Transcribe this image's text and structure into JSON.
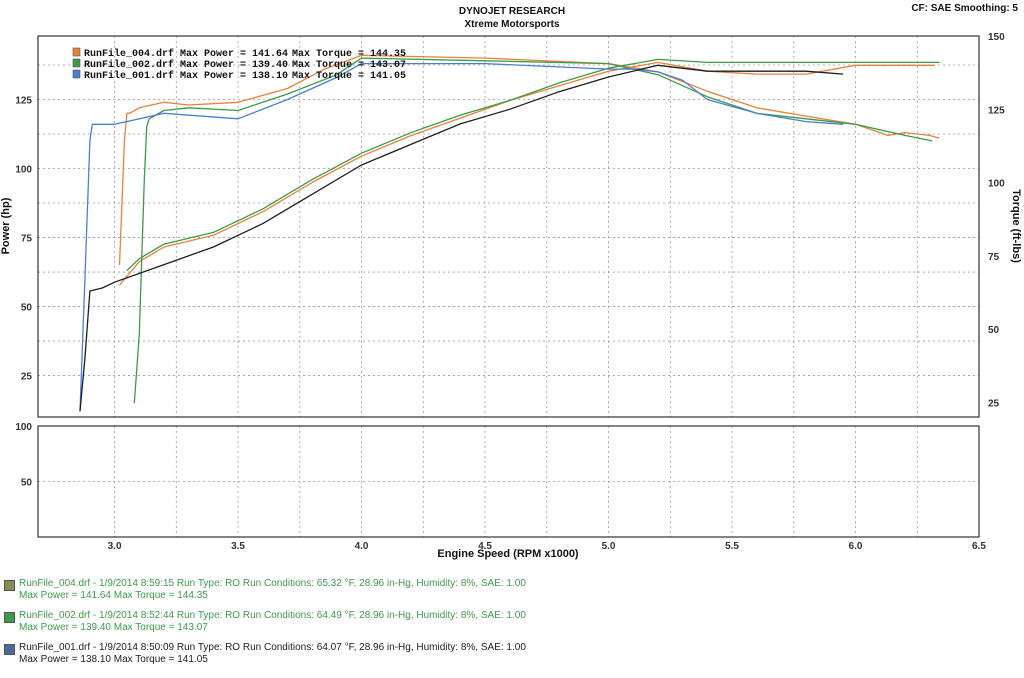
{
  "header": {
    "title_line1": "DYNOJET RESEARCH",
    "title_line2": "Xtreme Motorsports",
    "corner_info": "CF: SAE  Smoothing: 5"
  },
  "colors": {
    "run004": "#e8813a",
    "run002": "#3d9a4a",
    "run001_power": "#4a7fd0",
    "run001_torque": "#1e1e1e",
    "grid": "#9a9a9a",
    "frame": "#333333"
  },
  "chart_data": [
    {
      "type": "line",
      "name": "power-torque",
      "xlabel": "Engine Speed (RPM x1000)",
      "ylabel": "Power (hp)",
      "ylabel_right": "Torque (ft-lbs)",
      "xlim": [
        2.69,
        6.5
      ],
      "ylim": [
        10,
        148
      ],
      "ylim_right": [
        20,
        150
      ],
      "x_ticks": [
        "3.0",
        "3.5",
        "4.0",
        "4.5",
        "5.0",
        "5.5",
        "6.0",
        "6.5"
      ],
      "y_ticks_left": [
        "25",
        "50",
        "75",
        "100",
        "125"
      ],
      "y_ticks_right": [
        "25",
        "50",
        "75",
        "100",
        "125",
        "150"
      ],
      "grid": true,
      "legend_position": "top-left",
      "legend": [
        {
          "run": "RunFile_004.drf",
          "max_power": "Max Power = 141.64",
          "max_torque": "Max Torque = 144.35",
          "color_key": "run004"
        },
        {
          "run": "RunFile_002.drf",
          "max_power": "Max Power = 139.40",
          "max_torque": "Max Torque = 143.07",
          "color_key": "run002"
        },
        {
          "run": "RunFile_001.drf",
          "max_power": "Max Power = 138.10",
          "max_torque": "Max Torque = 141.05",
          "color_key": "run001_power"
        }
      ],
      "series": [
        {
          "run": "RunFile_004.drf",
          "measure": "Power (hp)",
          "axis": "left",
          "color_key": "run004",
          "x": [
            3.02,
            3.04,
            3.05,
            3.06,
            3.1,
            3.2,
            3.3,
            3.5,
            3.7,
            3.85,
            4.0,
            4.5,
            5.0,
            5.2,
            5.4,
            5.6,
            5.8,
            6.0,
            6.1,
            6.13,
            6.2,
            6.3,
            6.34
          ],
          "y": [
            65,
            110,
            120,
            120,
            122,
            124,
            123,
            124,
            129,
            136,
            141,
            140,
            138,
            135,
            128,
            122,
            119,
            116,
            113,
            112,
            113,
            112,
            111
          ]
        },
        {
          "run": "RunFile_004.drf",
          "measure": "Torque (ft-lbs)",
          "axis": "right",
          "color_key": "run004",
          "x": [
            3.02,
            3.1,
            3.2,
            3.4,
            3.6,
            3.8,
            4.0,
            4.2,
            4.4,
            4.6,
            4.8,
            5.0,
            5.2,
            5.4,
            5.6,
            5.8,
            6.0,
            6.2,
            6.32
          ],
          "y": [
            65,
            73,
            78,
            82,
            90,
            100,
            109,
            116,
            122,
            128,
            133,
            138,
            141,
            138,
            137,
            137,
            140,
            140,
            140
          ]
        },
        {
          "run": "RunFile_002.drf",
          "measure": "Power (hp)",
          "axis": "left",
          "color_key": "run002",
          "x": [
            3.08,
            3.1,
            3.12,
            3.13,
            3.14,
            3.2,
            3.3,
            3.5,
            3.7,
            3.9,
            4.0,
            4.5,
            5.0,
            5.2,
            5.4,
            5.6,
            5.8,
            6.0,
            6.2,
            6.31
          ],
          "y": [
            15,
            40,
            95,
            115,
            118,
            121,
            122,
            121,
            127,
            134,
            140,
            139,
            138,
            134,
            126,
            120,
            118,
            116,
            112,
            110
          ]
        },
        {
          "run": "RunFile_002.drf",
          "measure": "Torque (ft-lbs)",
          "axis": "right",
          "color_key": "run002",
          "x": [
            3.05,
            3.1,
            3.2,
            3.4,
            3.6,
            3.8,
            4.0,
            4.2,
            4.4,
            4.6,
            4.8,
            5.0,
            5.2,
            5.4,
            5.6,
            5.8,
            6.0,
            6.2,
            6.34
          ],
          "y": [
            70,
            74,
            79,
            83,
            91,
            101,
            110,
            117,
            123,
            128,
            134,
            139,
            142,
            141,
            141,
            141,
            141,
            141,
            141
          ]
        },
        {
          "run": "RunFile_001.drf",
          "measure": "Power (hp)",
          "axis": "left",
          "color_key": "run001_power",
          "x": [
            2.86,
            2.88,
            2.9,
            2.91,
            3.0,
            3.2,
            3.5,
            3.7,
            3.9,
            4.0,
            4.5,
            5.0,
            5.1,
            5.2,
            5.3,
            5.4,
            5.6,
            5.8,
            5.95
          ],
          "y": [
            12,
            60,
            110,
            116,
            116,
            120,
            118,
            125,
            133,
            138,
            138,
            136,
            136,
            135,
            132,
            125,
            120,
            117,
            116
          ]
        },
        {
          "run": "RunFile_001.drf",
          "measure": "Torque (ft-lbs)",
          "axis": "right",
          "color_key": "run001_torque",
          "x": [
            2.86,
            2.88,
            2.9,
            2.95,
            3.0,
            3.2,
            3.4,
            3.6,
            3.8,
            4.0,
            4.2,
            4.4,
            4.6,
            4.8,
            5.0,
            5.2,
            5.4,
            5.6,
            5.8,
            5.95
          ],
          "y": [
            22,
            40,
            63,
            64,
            66,
            72,
            78,
            86,
            96,
            106,
            113,
            120,
            125,
            131,
            136,
            140,
            138,
            138,
            138,
            137
          ]
        }
      ]
    },
    {
      "type": "line",
      "name": "lower-panel",
      "xlim": [
        2.69,
        6.5
      ],
      "ylim": [
        0,
        100
      ],
      "y_ticks_left": [
        "50",
        "100"
      ],
      "grid": true,
      "series": []
    }
  ],
  "run_info": [
    {
      "color_key": "run004",
      "line1": "RunFile_004.drf - 1/9/2014 8:59:15  Run Type: RO  Run Conditions: 65.32 °F, 28.96 in-Hg,  Humidity:  8%, SAE: 1.00",
      "line2": "Max Power = 141.64  Max Torque = 144.35",
      "text_color": "#3d9a4a",
      "swatch": "#8a8a58"
    },
    {
      "color_key": "run002",
      "line1": "RunFile_002.drf - 1/9/2014 8:52:44  Run Type: RO  Run Conditions: 64.49 °F, 28.96 in-Hg,  Humidity:  8%, SAE: 1.00",
      "line2": "Max Power = 139.40  Max Torque = 143.07",
      "text_color": "#3d9a4a",
      "swatch": "#3d9a4a"
    },
    {
      "color_key": "run001",
      "line1": "RunFile_001.drf - 1/9/2014 8:50:09  Run Type: RO  Run Conditions: 64.07 °F, 28.96 in-Hg,  Humidity:  8%, SAE: 1.00",
      "line2": "Max Power = 138.10  Max Torque = 141.05",
      "text_color": "#1e1e1e",
      "swatch": "#4a6a9a"
    }
  ]
}
